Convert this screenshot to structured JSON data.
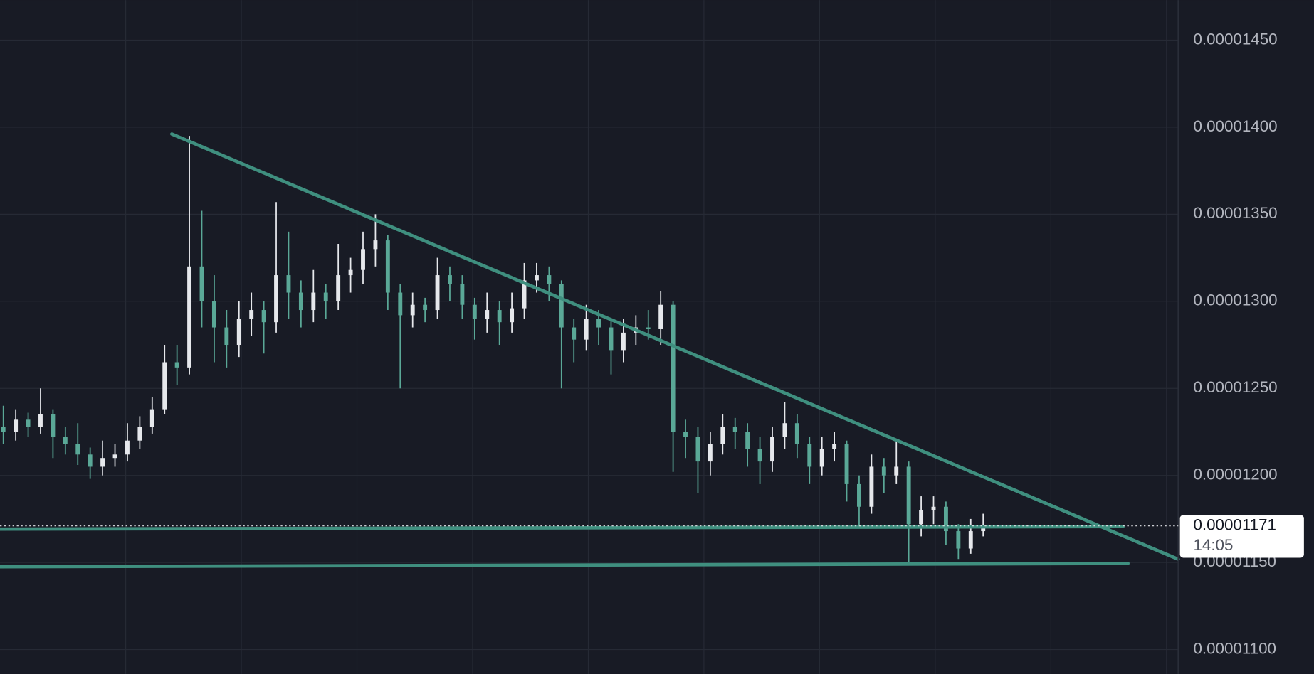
{
  "chart_data": {
    "type": "candlestick",
    "open": [
      1.228e-05,
      1.225e-05,
      1.232e-05,
      1.228e-05,
      1.235e-05,
      1.222e-05,
      1.218e-05,
      1.212e-05,
      1.205e-05,
      1.21e-05,
      1.212e-05,
      1.22e-05,
      1.228e-05,
      1.238e-05,
      1.265e-05,
      1.262e-05,
      1.32e-05,
      1.3e-05,
      1.285e-05,
      1.275e-05,
      1.29e-05,
      1.295e-05,
      1.288e-05,
      1.315e-05,
      1.305e-05,
      1.295e-05,
      1.305e-05,
      1.3e-05,
      1.315e-05,
      1.318e-05,
      1.33e-05,
      1.335e-05,
      1.305e-05,
      1.292e-05,
      1.298e-05,
      1.295e-05,
      1.315e-05,
      1.31e-05,
      1.298e-05,
      1.29e-05,
      1.295e-05,
      1.288e-05,
      1.296e-05,
      1.312e-05,
      1.315e-05,
      1.31e-05,
      1.285e-05,
      1.278e-05,
      1.29e-05,
      1.285e-05,
      1.272e-05,
      1.282e-05,
      1.285e-05,
      1.284e-05,
      1.298e-05,
      1.225e-05,
      1.222e-05,
      1.208e-05,
      1.218e-05,
      1.228e-05,
      1.225e-05,
      1.215e-05,
      1.208e-05,
      1.222e-05,
      1.23e-05,
      1.218e-05,
      1.205e-05,
      1.215e-05,
      1.218e-05,
      1.195e-05,
      1.182e-05,
      1.205e-05,
      1.2e-05,
      1.205e-05,
      1.172e-05,
      1.18e-05,
      1.182e-05,
      1.168e-05,
      1.158e-05,
      1.168e-05
    ],
    "high": [
      1.24e-05,
      1.238e-05,
      1.236e-05,
      1.25e-05,
      1.238e-05,
      1.228e-05,
      1.23e-05,
      1.216e-05,
      1.22e-05,
      1.218e-05,
      1.23e-05,
      1.234e-05,
      1.245e-05,
      1.275e-05,
      1.275e-05,
      1.395e-05,
      1.352e-05,
      1.315e-05,
      1.295e-05,
      1.3e-05,
      1.305e-05,
      1.3e-05,
      1.357e-05,
      1.34e-05,
      1.312e-05,
      1.318e-05,
      1.31e-05,
      1.333e-05,
      1.325e-05,
      1.34e-05,
      1.35e-05,
      1.338e-05,
      1.31e-05,
      1.305e-05,
      1.302e-05,
      1.325e-05,
      1.32e-05,
      1.315e-05,
      1.302e-05,
      1.305e-05,
      1.3e-05,
      1.305e-05,
      1.322e-05,
      1.322e-05,
      1.32e-05,
      1.312e-05,
      1.29e-05,
      1.298e-05,
      1.295e-05,
      1.29e-05,
      1.29e-05,
      1.292e-05,
      1.295e-05,
      1.306e-05,
      1.3e-05,
      1.232e-05,
      1.228e-05,
      1.225e-05,
      1.235e-05,
      1.233e-05,
      1.23e-05,
      1.222e-05,
      1.228e-05,
      1.242e-05,
      1.235e-05,
      1.222e-05,
      1.222e-05,
      1.225e-05,
      1.22e-05,
      1.2e-05,
      1.212e-05,
      1.21e-05,
      1.22e-05,
      1.208e-05,
      1.188e-05,
      1.188e-05,
      1.185e-05,
      1.172e-05,
      1.175e-05,
      1.178e-05
    ],
    "low": [
      1.218e-05,
      1.22e-05,
      1.222e-05,
      1.224e-05,
      1.21e-05,
      1.212e-05,
      1.206e-05,
      1.198e-05,
      1.2e-05,
      1.205e-05,
      1.208e-05,
      1.215e-05,
      1.224e-05,
      1.235e-05,
      1.252e-05,
      1.258e-05,
      1.285e-05,
      1.265e-05,
      1.262e-05,
      1.268e-05,
      1.28e-05,
      1.27e-05,
      1.282e-05,
      1.29e-05,
      1.285e-05,
      1.288e-05,
      1.29e-05,
      1.295e-05,
      1.305e-05,
      1.31e-05,
      1.32e-05,
      1.295e-05,
      1.25e-05,
      1.285e-05,
      1.288e-05,
      1.29e-05,
      1.3e-05,
      1.29e-05,
      1.278e-05,
      1.282e-05,
      1.275e-05,
      1.282e-05,
      1.29e-05,
      1.305e-05,
      1.3e-05,
      1.25e-05,
      1.265e-05,
      1.272e-05,
      1.275e-05,
      1.258e-05,
      1.265e-05,
      1.275e-05,
      1.278e-05,
      1.275e-05,
      1.202e-05,
      1.21e-05,
      1.19e-05,
      1.2e-05,
      1.212e-05,
      1.215e-05,
      1.205e-05,
      1.195e-05,
      1.202e-05,
      1.215e-05,
      1.21e-05,
      1.195e-05,
      1.2e-05,
      1.208e-05,
      1.185e-05,
      1.17e-05,
      1.178e-05,
      1.19e-05,
      1.195e-05,
      1.15e-05,
      1.165e-05,
      1.172e-05,
      1.16e-05,
      1.152e-05,
      1.155e-05,
      1.165e-05
    ],
    "close": [
      1.225e-05,
      1.232e-05,
      1.228e-05,
      1.235e-05,
      1.222e-05,
      1.218e-05,
      1.212e-05,
      1.205e-05,
      1.21e-05,
      1.212e-05,
      1.22e-05,
      1.228e-05,
      1.238e-05,
      1.265e-05,
      1.262e-05,
      1.32e-05,
      1.3e-05,
      1.285e-05,
      1.275e-05,
      1.29e-05,
      1.295e-05,
      1.288e-05,
      1.315e-05,
      1.305e-05,
      1.295e-05,
      1.305e-05,
      1.3e-05,
      1.315e-05,
      1.318e-05,
      1.33e-05,
      1.335e-05,
      1.305e-05,
      1.292e-05,
      1.298e-05,
      1.295e-05,
      1.315e-05,
      1.31e-05,
      1.298e-05,
      1.29e-05,
      1.295e-05,
      1.288e-05,
      1.296e-05,
      1.312e-05,
      1.315e-05,
      1.31e-05,
      1.285e-05,
      1.278e-05,
      1.29e-05,
      1.285e-05,
      1.272e-05,
      1.282e-05,
      1.285e-05,
      1.284e-05,
      1.298e-05,
      1.225e-05,
      1.222e-05,
      1.208e-05,
      1.218e-05,
      1.228e-05,
      1.225e-05,
      1.215e-05,
      1.208e-05,
      1.222e-05,
      1.23e-05,
      1.218e-05,
      1.205e-05,
      1.215e-05,
      1.218e-05,
      1.195e-05,
      1.182e-05,
      1.205e-05,
      1.2e-05,
      1.205e-05,
      1.172e-05,
      1.18e-05,
      1.182e-05,
      1.168e-05,
      1.158e-05,
      1.168e-05,
      1.171e-05
    ],
    "up_color": "#e6e8ec",
    "down_color": "#5aa897",
    "ylim": [
      1.086e-05,
      1.473e-05
    ],
    "yticks": [
      {
        "value": 1.1e-05,
        "label": "0.00001100"
      },
      {
        "value": 1.15e-05,
        "label": "0.00001150"
      },
      {
        "value": 1.2e-05,
        "label": "0.00001200"
      },
      {
        "value": 1.25e-05,
        "label": "0.00001250"
      },
      {
        "value": 1.3e-05,
        "label": "0.00001300"
      },
      {
        "value": 1.35e-05,
        "label": "0.00001350"
      },
      {
        "value": 1.4e-05,
        "label": "0.00001400"
      },
      {
        "value": 1.45e-05,
        "label": "0.00001450"
      }
    ],
    "grid": true,
    "last_value": 1.171e-05,
    "countdown": "14:05"
  }
}
